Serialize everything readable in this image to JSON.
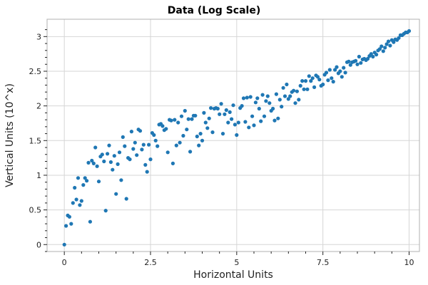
{
  "chart_data": {
    "type": "scatter",
    "title": "Data (Log Scale)",
    "xlabel": "Horizontal Units",
    "ylabel": "Vertical Units (10^x)",
    "xlim": [
      -0.5,
      10.3
    ],
    "ylim": [
      -0.1,
      3.25
    ],
    "x_ticks": [
      0,
      2.5,
      5,
      7.5,
      10
    ],
    "x_tick_labels": [
      "0",
      "2.5",
      "5",
      "7.5",
      "10"
    ],
    "y_ticks": [
      0,
      0.5,
      1,
      1.5,
      2,
      2.5,
      3
    ],
    "y_tick_labels": [
      "0",
      "0.5",
      "1",
      "1.5",
      "2",
      "2.5",
      "3"
    ],
    "grid": true,
    "marker_color": "#1f77b4",
    "series": [
      {
        "points": [
          [
            0.0,
            0.0
          ],
          [
            0.05,
            0.27
          ],
          [
            0.1,
            0.42
          ],
          [
            0.15,
            0.4
          ],
          [
            0.2,
            0.3
          ],
          [
            0.25,
            0.6
          ],
          [
            0.3,
            0.82
          ],
          [
            0.35,
            0.65
          ],
          [
            0.4,
            0.96
          ],
          [
            0.45,
            0.57
          ],
          [
            0.5,
            0.63
          ],
          [
            0.55,
            0.86
          ],
          [
            0.6,
            0.96
          ],
          [
            0.65,
            0.92
          ],
          [
            0.7,
            1.18
          ],
          [
            0.75,
            0.33
          ],
          [
            0.8,
            1.21
          ],
          [
            0.85,
            1.17
          ],
          [
            0.9,
            1.4
          ],
          [
            0.95,
            1.13
          ],
          [
            1.0,
            0.91
          ],
          [
            1.05,
            1.27
          ],
          [
            1.1,
            1.3
          ],
          [
            1.15,
            1.2
          ],
          [
            1.2,
            0.49
          ],
          [
            1.25,
            1.31
          ],
          [
            1.3,
            1.43
          ],
          [
            1.35,
            1.19
          ],
          [
            1.4,
            1.08
          ],
          [
            1.45,
            1.28
          ],
          [
            1.5,
            0.73
          ],
          [
            1.55,
            1.16
          ],
          [
            1.6,
            1.33
          ],
          [
            1.65,
            0.93
          ],
          [
            1.7,
            1.55
          ],
          [
            1.75,
            1.42
          ],
          [
            1.8,
            0.66
          ],
          [
            1.85,
            1.25
          ],
          [
            1.9,
            1.23
          ],
          [
            1.95,
            1.63
          ],
          [
            2.0,
            1.38
          ],
          [
            2.05,
            1.47
          ],
          [
            2.1,
            1.29
          ],
          [
            2.15,
            1.66
          ],
          [
            2.2,
            1.64
          ],
          [
            2.25,
            1.37
          ],
          [
            2.3,
            1.44
          ],
          [
            2.35,
            1.15
          ],
          [
            2.4,
            1.05
          ],
          [
            2.45,
            1.44
          ],
          [
            2.5,
            1.23
          ],
          [
            2.55,
            1.61
          ],
          [
            2.6,
            1.58
          ],
          [
            2.65,
            1.5
          ],
          [
            2.7,
            1.42
          ],
          [
            2.75,
            1.73
          ],
          [
            2.8,
            1.74
          ],
          [
            2.85,
            1.71
          ],
          [
            2.9,
            1.65
          ],
          [
            2.95,
            1.67
          ],
          [
            3.0,
            1.33
          ],
          [
            3.05,
            1.8
          ],
          [
            3.1,
            1.79
          ],
          [
            3.15,
            1.17
          ],
          [
            3.2,
            1.8
          ],
          [
            3.25,
            1.43
          ],
          [
            3.3,
            1.76
          ],
          [
            3.35,
            1.47
          ],
          [
            3.4,
            1.85
          ],
          [
            3.45,
            1.57
          ],
          [
            3.5,
            1.93
          ],
          [
            3.55,
            1.66
          ],
          [
            3.6,
            1.81
          ],
          [
            3.65,
            1.34
          ],
          [
            3.7,
            1.81
          ],
          [
            3.75,
            1.86
          ],
          [
            3.8,
            1.86
          ],
          [
            3.85,
            1.56
          ],
          [
            3.9,
            1.43
          ],
          [
            3.95,
            1.6
          ],
          [
            4.0,
            1.5
          ],
          [
            4.05,
            1.9
          ],
          [
            4.1,
            1.76
          ],
          [
            4.15,
            1.68
          ],
          [
            4.2,
            1.82
          ],
          [
            4.25,
            1.97
          ],
          [
            4.3,
            1.62
          ],
          [
            4.35,
            1.96
          ],
          [
            4.4,
            1.97
          ],
          [
            4.45,
            1.96
          ],
          [
            4.5,
            1.88
          ],
          [
            4.55,
            2.03
          ],
          [
            4.6,
            1.6
          ],
          [
            4.65,
            1.88
          ],
          [
            4.7,
            1.94
          ],
          [
            4.75,
            1.76
          ],
          [
            4.8,
            1.91
          ],
          [
            4.85,
            1.81
          ],
          [
            4.9,
            2.01
          ],
          [
            4.95,
            1.73
          ],
          [
            5.0,
            1.58
          ],
          [
            5.05,
            1.76
          ],
          [
            5.1,
            1.97
          ],
          [
            5.15,
            2.0
          ],
          [
            5.2,
            2.11
          ],
          [
            5.25,
            1.77
          ],
          [
            5.3,
            2.12
          ],
          [
            5.35,
            1.69
          ],
          [
            5.4,
            2.13
          ],
          [
            5.45,
            1.85
          ],
          [
            5.5,
            1.72
          ],
          [
            5.55,
            2.05
          ],
          [
            5.6,
            2.11
          ],
          [
            5.65,
            1.96
          ],
          [
            5.7,
            1.78
          ],
          [
            5.75,
            2.16
          ],
          [
            5.8,
            1.85
          ],
          [
            5.85,
            2.07
          ],
          [
            5.9,
            2.14
          ],
          [
            5.95,
            2.04
          ],
          [
            6.0,
            1.93
          ],
          [
            6.05,
            1.96
          ],
          [
            6.1,
            1.79
          ],
          [
            6.15,
            2.17
          ],
          [
            6.2,
            1.82
          ],
          [
            6.25,
            2.09
          ],
          [
            6.3,
            1.99
          ],
          [
            6.35,
            2.26
          ],
          [
            6.4,
            2.14
          ],
          [
            6.45,
            2.31
          ],
          [
            6.5,
            2.1
          ],
          [
            6.55,
            2.14
          ],
          [
            6.6,
            2.2
          ],
          [
            6.65,
            2.22
          ],
          [
            6.7,
            2.04
          ],
          [
            6.75,
            2.21
          ],
          [
            6.8,
            2.09
          ],
          [
            6.85,
            2.29
          ],
          [
            6.9,
            2.36
          ],
          [
            6.95,
            2.24
          ],
          [
            7.0,
            2.36
          ],
          [
            7.05,
            2.24
          ],
          [
            7.1,
            2.43
          ],
          [
            7.15,
            2.36
          ],
          [
            7.2,
            2.4
          ],
          [
            7.25,
            2.27
          ],
          [
            7.3,
            2.44
          ],
          [
            7.35,
            2.42
          ],
          [
            7.4,
            2.38
          ],
          [
            7.45,
            2.29
          ],
          [
            7.5,
            2.31
          ],
          [
            7.55,
            2.45
          ],
          [
            7.6,
            2.48
          ],
          [
            7.65,
            2.37
          ],
          [
            7.7,
            2.52
          ],
          [
            7.75,
            2.4
          ],
          [
            7.8,
            2.35
          ],
          [
            7.85,
            2.52
          ],
          [
            7.9,
            2.56
          ],
          [
            7.95,
            2.47
          ],
          [
            8.0,
            2.5
          ],
          [
            8.05,
            2.42
          ],
          [
            8.1,
            2.55
          ],
          [
            8.15,
            2.48
          ],
          [
            8.2,
            2.63
          ],
          [
            8.25,
            2.64
          ],
          [
            8.3,
            2.59
          ],
          [
            8.35,
            2.63
          ],
          [
            8.4,
            2.64
          ],
          [
            8.45,
            2.65
          ],
          [
            8.5,
            2.6
          ],
          [
            8.55,
            2.71
          ],
          [
            8.6,
            2.62
          ],
          [
            8.65,
            2.67
          ],
          [
            8.7,
            2.68
          ],
          [
            8.75,
            2.66
          ],
          [
            8.8,
            2.68
          ],
          [
            8.85,
            2.72
          ],
          [
            8.9,
            2.75
          ],
          [
            8.95,
            2.71
          ],
          [
            9.0,
            2.77
          ],
          [
            9.05,
            2.74
          ],
          [
            9.1,
            2.8
          ],
          [
            9.15,
            2.82
          ],
          [
            9.2,
            2.86
          ],
          [
            9.25,
            2.79
          ],
          [
            9.3,
            2.84
          ],
          [
            9.35,
            2.89
          ],
          [
            9.4,
            2.93
          ],
          [
            9.45,
            2.87
          ],
          [
            9.5,
            2.95
          ],
          [
            9.55,
            2.92
          ],
          [
            9.6,
            2.96
          ],
          [
            9.65,
            2.95
          ],
          [
            9.7,
            2.98
          ],
          [
            9.75,
            3.02
          ],
          [
            9.8,
            3.02
          ],
          [
            9.85,
            3.04
          ],
          [
            9.9,
            3.06
          ],
          [
            9.95,
            3.06
          ],
          [
            10.0,
            3.08
          ]
        ]
      }
    ]
  }
}
